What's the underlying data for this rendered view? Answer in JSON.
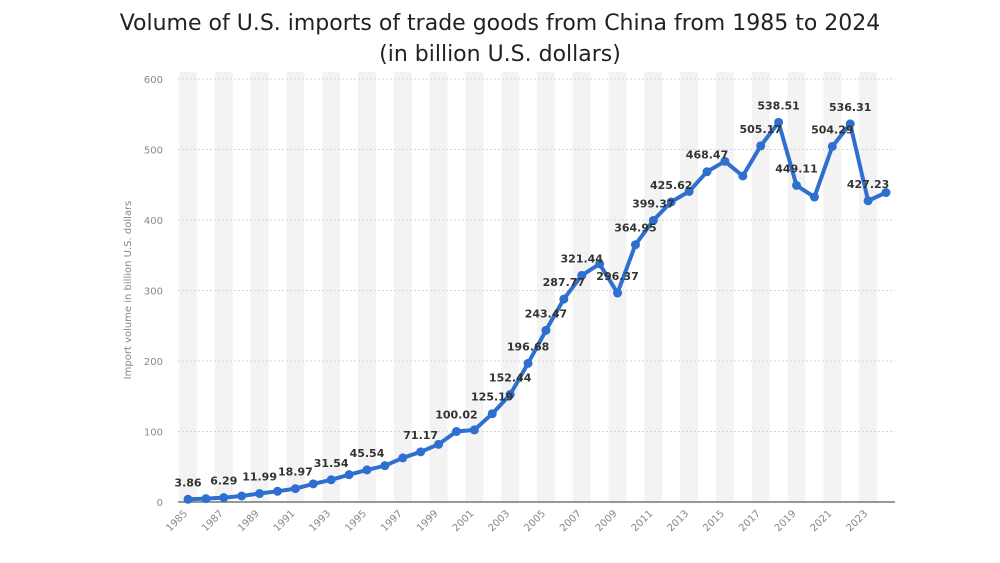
{
  "chart_data": {
    "type": "line",
    "title": "Volume of U.S. imports of trade goods from China from 1985 to 2024",
    "subtitle": "(in billion U.S. dollars)",
    "xlabel": "",
    "ylabel": "Import volume in billion U.S. dollars",
    "ylim": [
      0,
      600
    ],
    "yticks": [
      0,
      100,
      200,
      300,
      400,
      500,
      600
    ],
    "xtick_labels": [
      "1985",
      "1987",
      "1989",
      "1991",
      "1993",
      "1995",
      "1997",
      "1999",
      "2001",
      "2003",
      "2005",
      "2007",
      "2009",
      "2011",
      "2013",
      "2015",
      "2017",
      "2019",
      "2021",
      "2023"
    ],
    "grid": "horizontal",
    "series_color": "#2f6fcf",
    "x": [
      1985,
      1986,
      1987,
      1988,
      1989,
      1990,
      1991,
      1992,
      1993,
      1994,
      1995,
      1996,
      1997,
      1998,
      1999,
      2000,
      2001,
      2002,
      2003,
      2004,
      2005,
      2006,
      2007,
      2008,
      2009,
      2010,
      2011,
      2012,
      2013,
      2014,
      2015,
      2016,
      2017,
      2018,
      2019,
      2020,
      2021,
      2022,
      2023,
      2024
    ],
    "values": [
      3.86,
      4.77,
      6.29,
      8.51,
      11.99,
      15.24,
      18.97,
      25.73,
      31.54,
      38.79,
      45.54,
      51.51,
      62.56,
      71.17,
      81.79,
      100.02,
      102.28,
      125.19,
      152.44,
      196.68,
      243.47,
      287.77,
      321.44,
      337.77,
      296.37,
      364.95,
      399.37,
      425.62,
      440.43,
      468.47,
      483.2,
      462.42,
      505.17,
      538.51,
      449.11,
      432.55,
      504.29,
      536.31,
      427.23,
      438.95
    ],
    "data_labels": [
      {
        "x": 1985,
        "text": "3.86"
      },
      {
        "x": 1987,
        "text": "6.29"
      },
      {
        "x": 1989,
        "text": "11.99"
      },
      {
        "x": 1991,
        "text": "18.97"
      },
      {
        "x": 1993,
        "text": "31.54"
      },
      {
        "x": 1995,
        "text": "45.54"
      },
      {
        "x": 1998,
        "text": "71.17"
      },
      {
        "x": 2000,
        "text": "100.02"
      },
      {
        "x": 2002,
        "text": "125.19"
      },
      {
        "x": 2003,
        "text": "152.44"
      },
      {
        "x": 2004,
        "text": "196.68"
      },
      {
        "x": 2005,
        "text": "243.47"
      },
      {
        "x": 2006,
        "text": "287.77"
      },
      {
        "x": 2007,
        "text": "321.44"
      },
      {
        "x": 2009,
        "text": "296.37"
      },
      {
        "x": 2010,
        "text": "364.95"
      },
      {
        "x": 2011,
        "text": "399.37"
      },
      {
        "x": 2012,
        "text": "425.62"
      },
      {
        "x": 2014,
        "text": "468.47"
      },
      {
        "x": 2017,
        "text": "505.17"
      },
      {
        "x": 2018,
        "text": "538.51"
      },
      {
        "x": 2019,
        "text": "449.11"
      },
      {
        "x": 2021,
        "text": "504.29"
      },
      {
        "x": 2022,
        "text": "536.31"
      },
      {
        "x": 2023,
        "text": "427.23"
      }
    ]
  }
}
